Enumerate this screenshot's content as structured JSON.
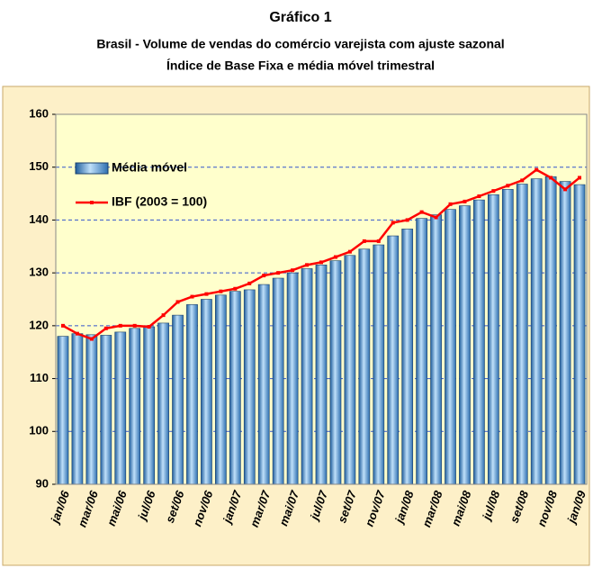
{
  "chart_data": {
    "type": "bar_line",
    "title": "Gráfico 1",
    "subtitle": [
      "Brasil - Volume de vendas do comércio varejista com ajuste sazonal",
      "Índice de Base Fixa  e média móvel trimestral"
    ],
    "categories": [
      "jan/06",
      null,
      "mar/06",
      null,
      "mai/06",
      null,
      "jul/06",
      null,
      "set/06",
      null,
      "nov/06",
      null,
      "jan/07",
      null,
      "mar/07",
      null,
      "mai/07",
      null,
      "jul/07",
      null,
      "set/07",
      null,
      "nov/07",
      null,
      "jan/08",
      null,
      "mar/08",
      null,
      "mai/08",
      null,
      "jul/08",
      null,
      "set/08",
      null,
      "nov/08",
      null,
      "jan/09"
    ],
    "series": [
      {
        "name": "Média móvel",
        "kind": "bar",
        "color": "#4f8fc9",
        "values": [
          118,
          118.5,
          118.3,
          118.2,
          118.8,
          119.5,
          119.8,
          120.5,
          122,
          124,
          125,
          125.8,
          126.5,
          126.8,
          127.8,
          129,
          130,
          130.8,
          131.5,
          132.3,
          133.3,
          134.5,
          135.3,
          137,
          138.3,
          140.3,
          141,
          142,
          142.7,
          143.8,
          144.8,
          145.8,
          146.8,
          147.8,
          148.2,
          147.3,
          146.7
        ]
      },
      {
        "name": "IBF (2003 = 100)",
        "kind": "line",
        "color": "#ff0000",
        "values": [
          120,
          118.5,
          117.5,
          119.5,
          120,
          120,
          119.8,
          122,
          124.5,
          125.5,
          126,
          126.5,
          127,
          128,
          129.5,
          130,
          130.5,
          131.5,
          132,
          133,
          134,
          136,
          136,
          139.5,
          140,
          141.5,
          140.5,
          143,
          143.5,
          144.5,
          145.5,
          146.5,
          147.5,
          149.5,
          148,
          145.8,
          148
        ]
      }
    ],
    "ylim": [
      90,
      160
    ],
    "yticks": [
      90,
      100,
      110,
      120,
      130,
      140,
      150,
      160
    ],
    "grid": true,
    "legend": "top-left"
  }
}
